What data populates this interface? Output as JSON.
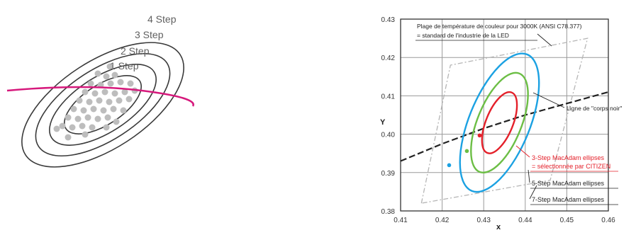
{
  "left_diagram": {
    "step_labels": [
      "4 Step",
      "3 Step",
      "2 Step",
      "1 Step"
    ],
    "colors": {
      "ellipse": "#3a3a3a",
      "point": "#bdbdbd",
      "curve": "#d6197c",
      "label": "#606060"
    }
  },
  "chart_data": {
    "type": "scatter",
    "xlabel": "x",
    "ylabel": "Y",
    "xlim": [
      0.41,
      0.46
    ],
    "ylim": [
      0.38,
      0.43
    ],
    "x_ticks": [
      "0.41",
      "0.42",
      "0.43",
      "0.44",
      "0.45",
      "0.46"
    ],
    "y_ticks": [
      "0.38",
      "0.39",
      "0.40",
      "0.41",
      "0.42",
      "0.43"
    ],
    "grid": true,
    "center": {
      "x": 0.4338,
      "y": 0.403
    },
    "ellipses": [
      {
        "steps": 3,
        "label": "3-Step MacAdam ellipses",
        "color": "#e4202a"
      },
      {
        "steps": 5,
        "label": "5-Step MacAdam ellipses",
        "color": "#6cbe45"
      },
      {
        "steps": 7,
        "label": "7-Step MacAdam ellipses",
        "color": "#1ba1e2"
      }
    ],
    "annotations": {
      "ansi_line1": "Plage de température de couleur pour 3000K (ANSI C78.377)",
      "ansi_line2": "= standard de l'industrie de la LED",
      "blackbody": "Ligne de \"corps noir\"",
      "citizen_line2": "= sélectionnée par CITIZEN"
    },
    "blackbody_curve": [
      {
        "x": 0.41,
        "y": 0.393
      },
      {
        "x": 0.42,
        "y": 0.3975
      },
      {
        "x": 0.43,
        "y": 0.4015
      },
      {
        "x": 0.44,
        "y": 0.405
      },
      {
        "x": 0.45,
        "y": 0.408
      },
      {
        "x": 0.46,
        "y": 0.411
      }
    ],
    "ansi_quadrangle": [
      {
        "x": 0.415,
        "y": 0.382
      },
      {
        "x": 0.422,
        "y": 0.418
      },
      {
        "x": 0.455,
        "y": 0.425
      },
      {
        "x": 0.446,
        "y": 0.388
      }
    ],
    "colors": {
      "grid": "#9a9a9a",
      "axis": "#333333",
      "blackbody": "#222222",
      "ansi": "#b5b5b5",
      "annotation": "#222222",
      "citizen": "#e4202a"
    }
  }
}
